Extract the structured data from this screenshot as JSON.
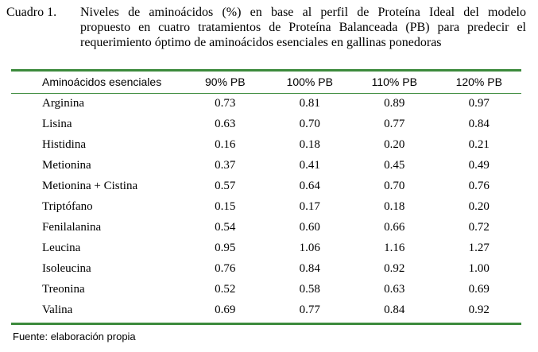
{
  "caption": {
    "label": "Cuadro 1.",
    "lines": [
      "Niveles de aminoácidos (%) en base al perfil de Proteína Ideal del modelo",
      "propuesto en cuatro tratamientos de Proteína Balanceada (PB) para predecir el",
      "requerimiento óptimo de aminoácidos esenciales en gallinas ponedoras"
    ]
  },
  "table": {
    "columns": [
      "Aminoácidos esenciales",
      "90% PB",
      "100% PB",
      "110% PB",
      "120% PB"
    ],
    "rows": [
      [
        "Arginina",
        "0.73",
        "0.81",
        "0.89",
        "0.97"
      ],
      [
        "Lisina",
        "0.63",
        "0.70",
        "0.77",
        "0.84"
      ],
      [
        "Histidina",
        "0.16",
        "0.18",
        "0.20",
        "0.21"
      ],
      [
        "Metionina",
        "0.37",
        "0.41",
        "0.45",
        "0.49"
      ],
      [
        "Metionina + Cistina",
        "0.57",
        "0.64",
        "0.70",
        "0.76"
      ],
      [
        "Triptófano",
        "0.15",
        "0.17",
        "0.18",
        "0.20"
      ],
      [
        "Fenilalanina",
        "0.54",
        "0.60",
        "0.66",
        "0.72"
      ],
      [
        "Leucina",
        "0.95",
        "1.06",
        "1.16",
        "1.27"
      ],
      [
        "Isoleucina",
        "0.76",
        "0.84",
        "0.92",
        "1.00"
      ],
      [
        "Treonina",
        "0.52",
        "0.58",
        "0.63",
        "0.69"
      ],
      [
        "Valina",
        "0.69",
        "0.77",
        "0.84",
        "0.92"
      ]
    ]
  },
  "source": "Fuente: elaboración propia",
  "colors": {
    "rule": "#3c8a3c"
  }
}
